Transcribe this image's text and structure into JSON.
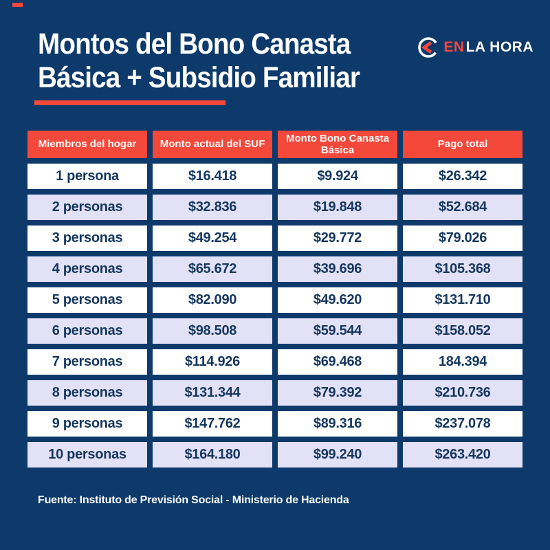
{
  "colors": {
    "background": "#0d3a6b",
    "accent_red": "#f4483b",
    "row_white": "#ffffff",
    "row_lavender": "#e3e1f6",
    "cell_text": "#15375f",
    "header_text": "#ffffff"
  },
  "header": {
    "title_line1": "Montos del Bono Canasta",
    "title_line2": "Básica + Subsidio Familiar",
    "logo": {
      "icon": "enlahora-logo-icon",
      "part1": "EN",
      "part2": "LA HORA"
    }
  },
  "chart_data": {
    "type": "table",
    "title": "Montos del Bono Canasta Básica + Subsidio Familiar",
    "columns": [
      "Miembros del hogar",
      "Monto actual del SUF",
      "Monto Bono Canasta Básica",
      "Pago total"
    ],
    "rows": [
      [
        "1 persona",
        "$16.418",
        "$9.924",
        "$26.342"
      ],
      [
        "2 personas",
        "$32.836",
        "$19.848",
        "$52.684"
      ],
      [
        "3 personas",
        "$49.254",
        "$29.772",
        "$79.026"
      ],
      [
        "4 personas",
        "$65.672",
        "$39.696",
        "$105.368"
      ],
      [
        "5 personas",
        "$82.090",
        "$49.620",
        "$131.710"
      ],
      [
        "6 personas",
        "$98.508",
        "$59.544",
        "$158.052"
      ],
      [
        "7 personas",
        "$114.926",
        "$69.468",
        "184.394"
      ],
      [
        "8 personas",
        "$131.344",
        "$79.392",
        "$210.736"
      ],
      [
        "9 personas",
        "$147.762",
        "$89.316",
        "$237.078"
      ],
      [
        "10 personas",
        "$164.180",
        "$99.240",
        "$263.420"
      ]
    ]
  },
  "footer": {
    "source": "Fuente: Instituto de Previsión Social - Ministerio de Hacienda"
  }
}
